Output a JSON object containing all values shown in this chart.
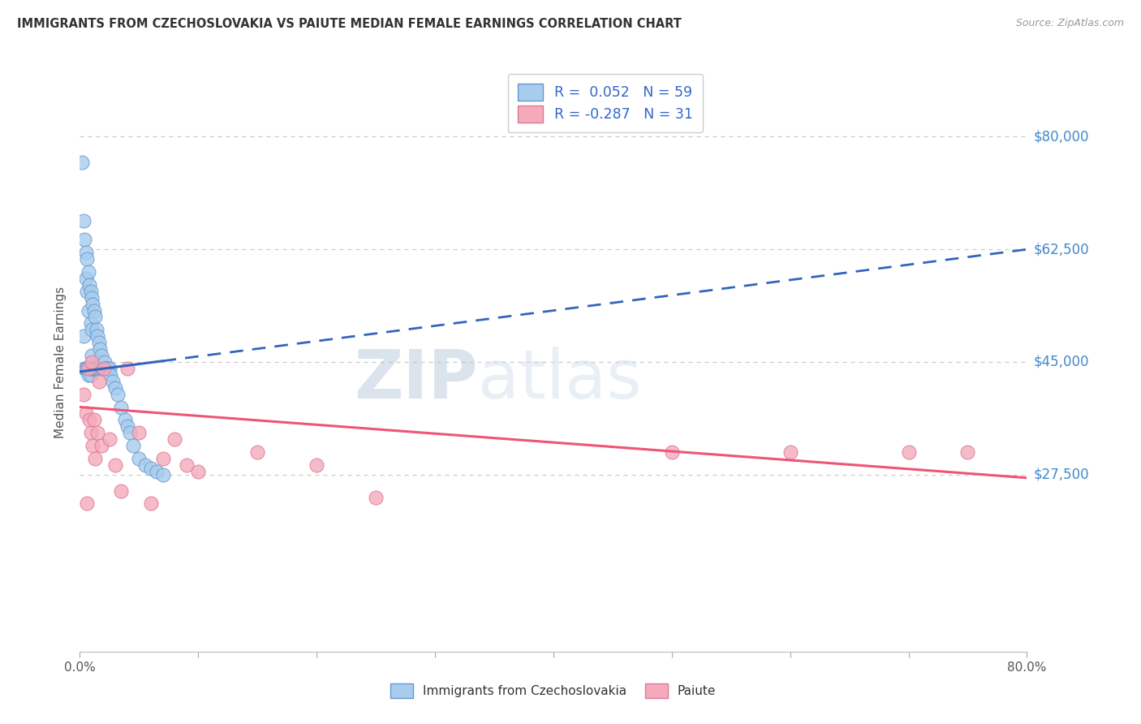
{
  "title": "IMMIGRANTS FROM CZECHOSLOVAKIA VS PAIUTE MEDIAN FEMALE EARNINGS CORRELATION CHART",
  "source": "Source: ZipAtlas.com",
  "ylabel": "Median Female Earnings",
  "ytick_vals": [
    27500,
    45000,
    62500,
    80000
  ],
  "ytick_labels": [
    "$27,500",
    "$45,000",
    "$62,500",
    "$80,000"
  ],
  "xlim": [
    0.0,
    0.8
  ],
  "ylim": [
    0,
    90000
  ],
  "xtick_positions": [
    0.0,
    0.1,
    0.2,
    0.3,
    0.4,
    0.5,
    0.6,
    0.7,
    0.8
  ],
  "xtick_labels": [
    "0.0%",
    "",
    "",
    "",
    "",
    "",
    "",
    "",
    "80.0%"
  ],
  "series1_color": "#A8CCEE",
  "series1_edge": "#6699CC",
  "series2_color": "#F4AABB",
  "series2_edge": "#DD7799",
  "trend1_color": "#3366BB",
  "trend2_color": "#EE5577",
  "R1": 0.052,
  "N1": 59,
  "R2": -0.287,
  "N2": 31,
  "watermark_zip": "ZIP",
  "watermark_atlas": "atlas",
  "background": "#FFFFFF",
  "grid_color": "#CCCCCC",
  "series1_x": [
    0.002,
    0.003,
    0.003,
    0.004,
    0.004,
    0.005,
    0.005,
    0.005,
    0.006,
    0.006,
    0.006,
    0.007,
    0.007,
    0.007,
    0.008,
    0.008,
    0.009,
    0.009,
    0.009,
    0.01,
    0.01,
    0.01,
    0.01,
    0.011,
    0.011,
    0.012,
    0.012,
    0.013,
    0.013,
    0.014,
    0.014,
    0.015,
    0.015,
    0.016,
    0.016,
    0.017,
    0.018,
    0.018,
    0.019,
    0.02,
    0.021,
    0.022,
    0.023,
    0.024,
    0.025,
    0.026,
    0.028,
    0.03,
    0.032,
    0.035,
    0.038,
    0.04,
    0.042,
    0.045,
    0.05,
    0.055,
    0.06,
    0.065,
    0.07
  ],
  "series1_y": [
    76000,
    67000,
    49000,
    64000,
    44000,
    62000,
    58000,
    44000,
    61000,
    56000,
    44000,
    59000,
    53000,
    43000,
    57000,
    44000,
    56000,
    51000,
    43000,
    55000,
    50000,
    46000,
    44000,
    54000,
    44000,
    53000,
    44000,
    52000,
    44000,
    50000,
    44000,
    49000,
    44000,
    48000,
    44000,
    47000,
    46000,
    44000,
    44000,
    44000,
    45000,
    44000,
    44000,
    44000,
    44000,
    43000,
    42000,
    41000,
    40000,
    38000,
    36000,
    35000,
    34000,
    32000,
    30000,
    29000,
    28500,
    28000,
    27500
  ],
  "series2_x": [
    0.003,
    0.005,
    0.006,
    0.007,
    0.008,
    0.009,
    0.01,
    0.011,
    0.012,
    0.013,
    0.015,
    0.016,
    0.018,
    0.02,
    0.025,
    0.03,
    0.035,
    0.04,
    0.05,
    0.06,
    0.07,
    0.08,
    0.09,
    0.1,
    0.15,
    0.2,
    0.25,
    0.5,
    0.6,
    0.7,
    0.75
  ],
  "series2_y": [
    40000,
    37000,
    23000,
    44000,
    36000,
    34000,
    45000,
    32000,
    36000,
    30000,
    34000,
    42000,
    32000,
    44000,
    33000,
    29000,
    25000,
    44000,
    34000,
    23000,
    30000,
    33000,
    29000,
    28000,
    31000,
    29000,
    24000,
    31000,
    31000,
    31000,
    31000
  ]
}
